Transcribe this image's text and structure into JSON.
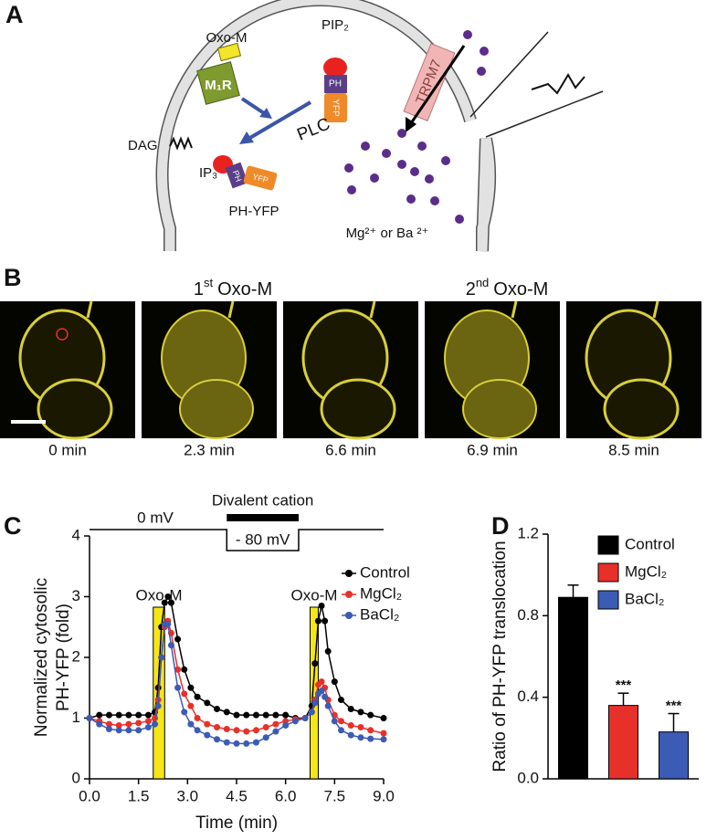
{
  "panels": {
    "a": {
      "label": "A",
      "ligand": "Oxo-M",
      "receptor": "M₁R",
      "lipid": "PIP₂",
      "channel": "TRPM7",
      "dag": "DAG",
      "enzyme": "PLC",
      "ip3": "IP₃",
      "ph": "PH",
      "yfp": "YFP",
      "probe": "PH-YFP",
      "ions": "Mg²⁺ or Ba ²⁺"
    },
    "b": {
      "label": "B",
      "headers": [
        {
          "num": "1",
          "sup": "st",
          "text": "Oxo-M"
        },
        {
          "num": "2",
          "sup": "nd",
          "text": "Oxo-M"
        }
      ],
      "frames": [
        "0 min",
        "2.3 min",
        "6.6 min",
        "6.9 min",
        "8.5 min"
      ]
    },
    "c": {
      "label": "C"
    },
    "d": {
      "label": "D"
    }
  },
  "chart_data": [
    {
      "type": "line",
      "ylabel": [
        "Normalized cytosolic",
        "PH-YFP (fold)"
      ],
      "xlabel": "Time (min)",
      "x": [
        0,
        0.3,
        0.6,
        0.9,
        1.2,
        1.5,
        1.8,
        2.0,
        2.1,
        2.2,
        2.3,
        2.4,
        2.5,
        2.7,
        2.9,
        3.1,
        3.3,
        3.6,
        3.9,
        4.2,
        4.5,
        4.8,
        5.1,
        5.4,
        5.7,
        6.0,
        6.3,
        6.6,
        6.8,
        6.9,
        7.0,
        7.1,
        7.2,
        7.3,
        7.5,
        7.7,
        8.0,
        8.3,
        8.6,
        9.0
      ],
      "series": [
        {
          "name": "Control",
          "color": "#000000",
          "values": [
            1,
            1.05,
            1.05,
            1.05,
            1.05,
            1.05,
            1.05,
            1.1,
            1.5,
            2.5,
            2.9,
            3.0,
            2.9,
            2.3,
            1.8,
            1.5,
            1.35,
            1.25,
            1.15,
            1.1,
            1.05,
            1.05,
            1.05,
            1.05,
            1.05,
            1.05,
            1.0,
            1.0,
            1.2,
            1.9,
            2.6,
            2.85,
            2.6,
            2.1,
            1.6,
            1.3,
            1.15,
            1.1,
            1.05,
            1.0
          ]
        },
        {
          "name": "MgCl₂",
          "color": "#e8302a",
          "values": [
            1,
            0.95,
            0.9,
            0.88,
            0.9,
            0.92,
            0.95,
            1.0,
            1.3,
            2.0,
            2.5,
            2.6,
            2.4,
            1.8,
            1.4,
            1.2,
            1.0,
            0.9,
            0.85,
            0.82,
            0.8,
            0.78,
            0.8,
            0.85,
            0.9,
            0.95,
            0.98,
            1.0,
            1.1,
            1.3,
            1.55,
            1.6,
            1.5,
            1.3,
            1.05,
            0.95,
            0.88,
            0.85,
            0.8,
            0.75
          ]
        },
        {
          "name": "BaCl₂",
          "color": "#3b5bb5",
          "values": [
            1,
            0.9,
            0.82,
            0.8,
            0.8,
            0.8,
            0.85,
            0.9,
            1.2,
            2.0,
            2.55,
            2.55,
            2.2,
            1.5,
            1.1,
            0.9,
            0.8,
            0.72,
            0.65,
            0.6,
            0.58,
            0.58,
            0.6,
            0.68,
            0.78,
            0.88,
            0.95,
            1.0,
            1.1,
            1.25,
            1.4,
            1.45,
            1.35,
            1.2,
            0.95,
            0.8,
            0.72,
            0.68,
            0.66,
            0.65
          ]
        }
      ],
      "xlim": [
        0,
        9
      ],
      "ylim": [
        0,
        4
      ],
      "xticks": [
        {
          "value": 0,
          "label": "0.0"
        },
        1.5,
        {
          "value": 3,
          "label": "3.0"
        },
        4.5,
        {
          "value": 6,
          "label": "6.0"
        },
        7.5,
        {
          "value": 9,
          "label": "9.0"
        }
      ],
      "yticks": [
        0,
        1,
        2,
        3,
        4
      ],
      "stimuli": [
        {
          "label": "Oxo-M",
          "start": 1.95,
          "end": 2.3
        },
        {
          "label": "Oxo-M",
          "start": 6.75,
          "end": 7.0
        }
      ],
      "stimulus_color": "#f5e616",
      "protocol": {
        "label": "Divalent cation",
        "start": 4.2,
        "end": 6.4,
        "hold": "0 mV",
        "step": "- 80 mV"
      }
    },
    {
      "type": "bar",
      "ylabel": "Ratio of PH-YFP translocation",
      "series": [
        {
          "name": "Control",
          "color": "#000000",
          "values": [
            0.89
          ],
          "errors": [
            0.06
          ]
        },
        {
          "name": "MgCl₂",
          "color": "#e8302a",
          "values": [
            0.36
          ],
          "errors": [
            0.06
          ],
          "annotation": "***"
        },
        {
          "name": "BaCl₂",
          "color": "#3b5bb5",
          "values": [
            0.23
          ],
          "errors": [
            0.09
          ],
          "annotation": "***"
        }
      ],
      "ylim": [
        0,
        1.2
      ],
      "yticks": [
        {
          "value": 0,
          "label": "0.0"
        },
        {
          "value": 0.4,
          "label": "0.4"
        },
        {
          "value": 0.8,
          "label": "0.8"
        },
        {
          "value": 1.2,
          "label": "1.2"
        }
      ]
    }
  ]
}
